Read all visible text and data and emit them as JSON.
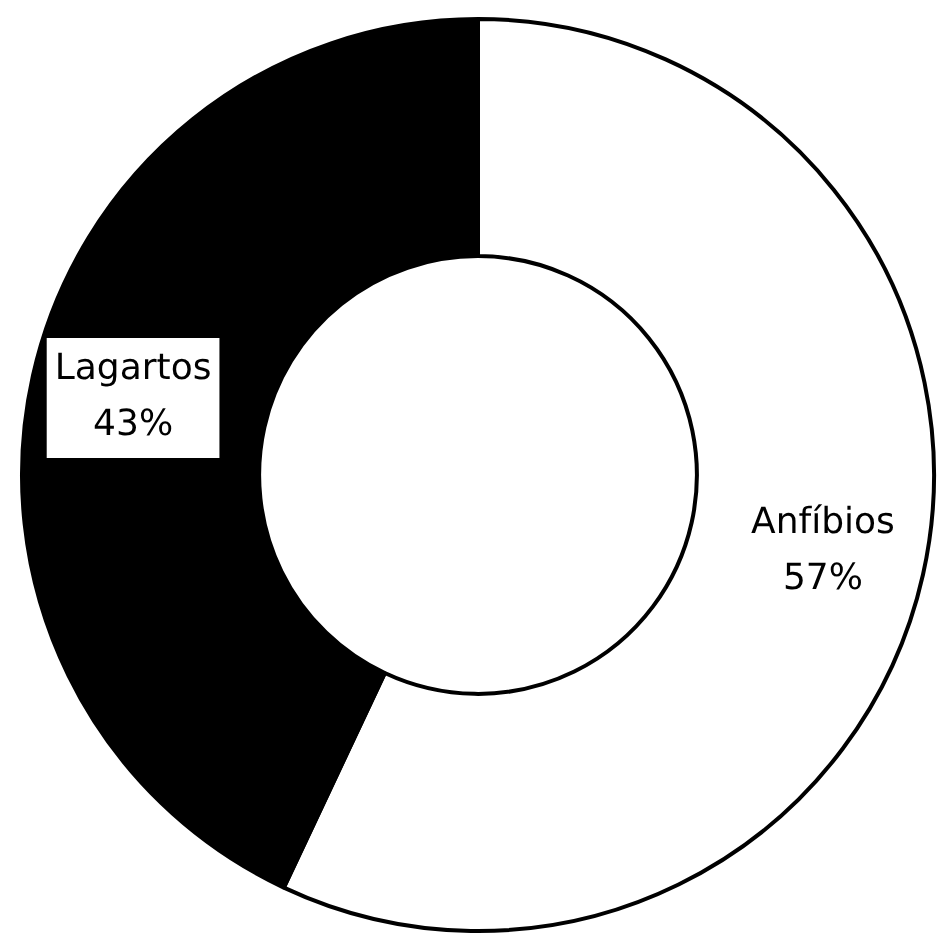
{
  "chart_data": {
    "type": "donut",
    "categories": [
      "Anfíbios",
      "Lagartos"
    ],
    "values": [
      57,
      43
    ],
    "colors": [
      "#ffffff",
      "#000000"
    ],
    "value_labels": [
      "57%",
      "43%"
    ],
    "legend": false
  }
}
